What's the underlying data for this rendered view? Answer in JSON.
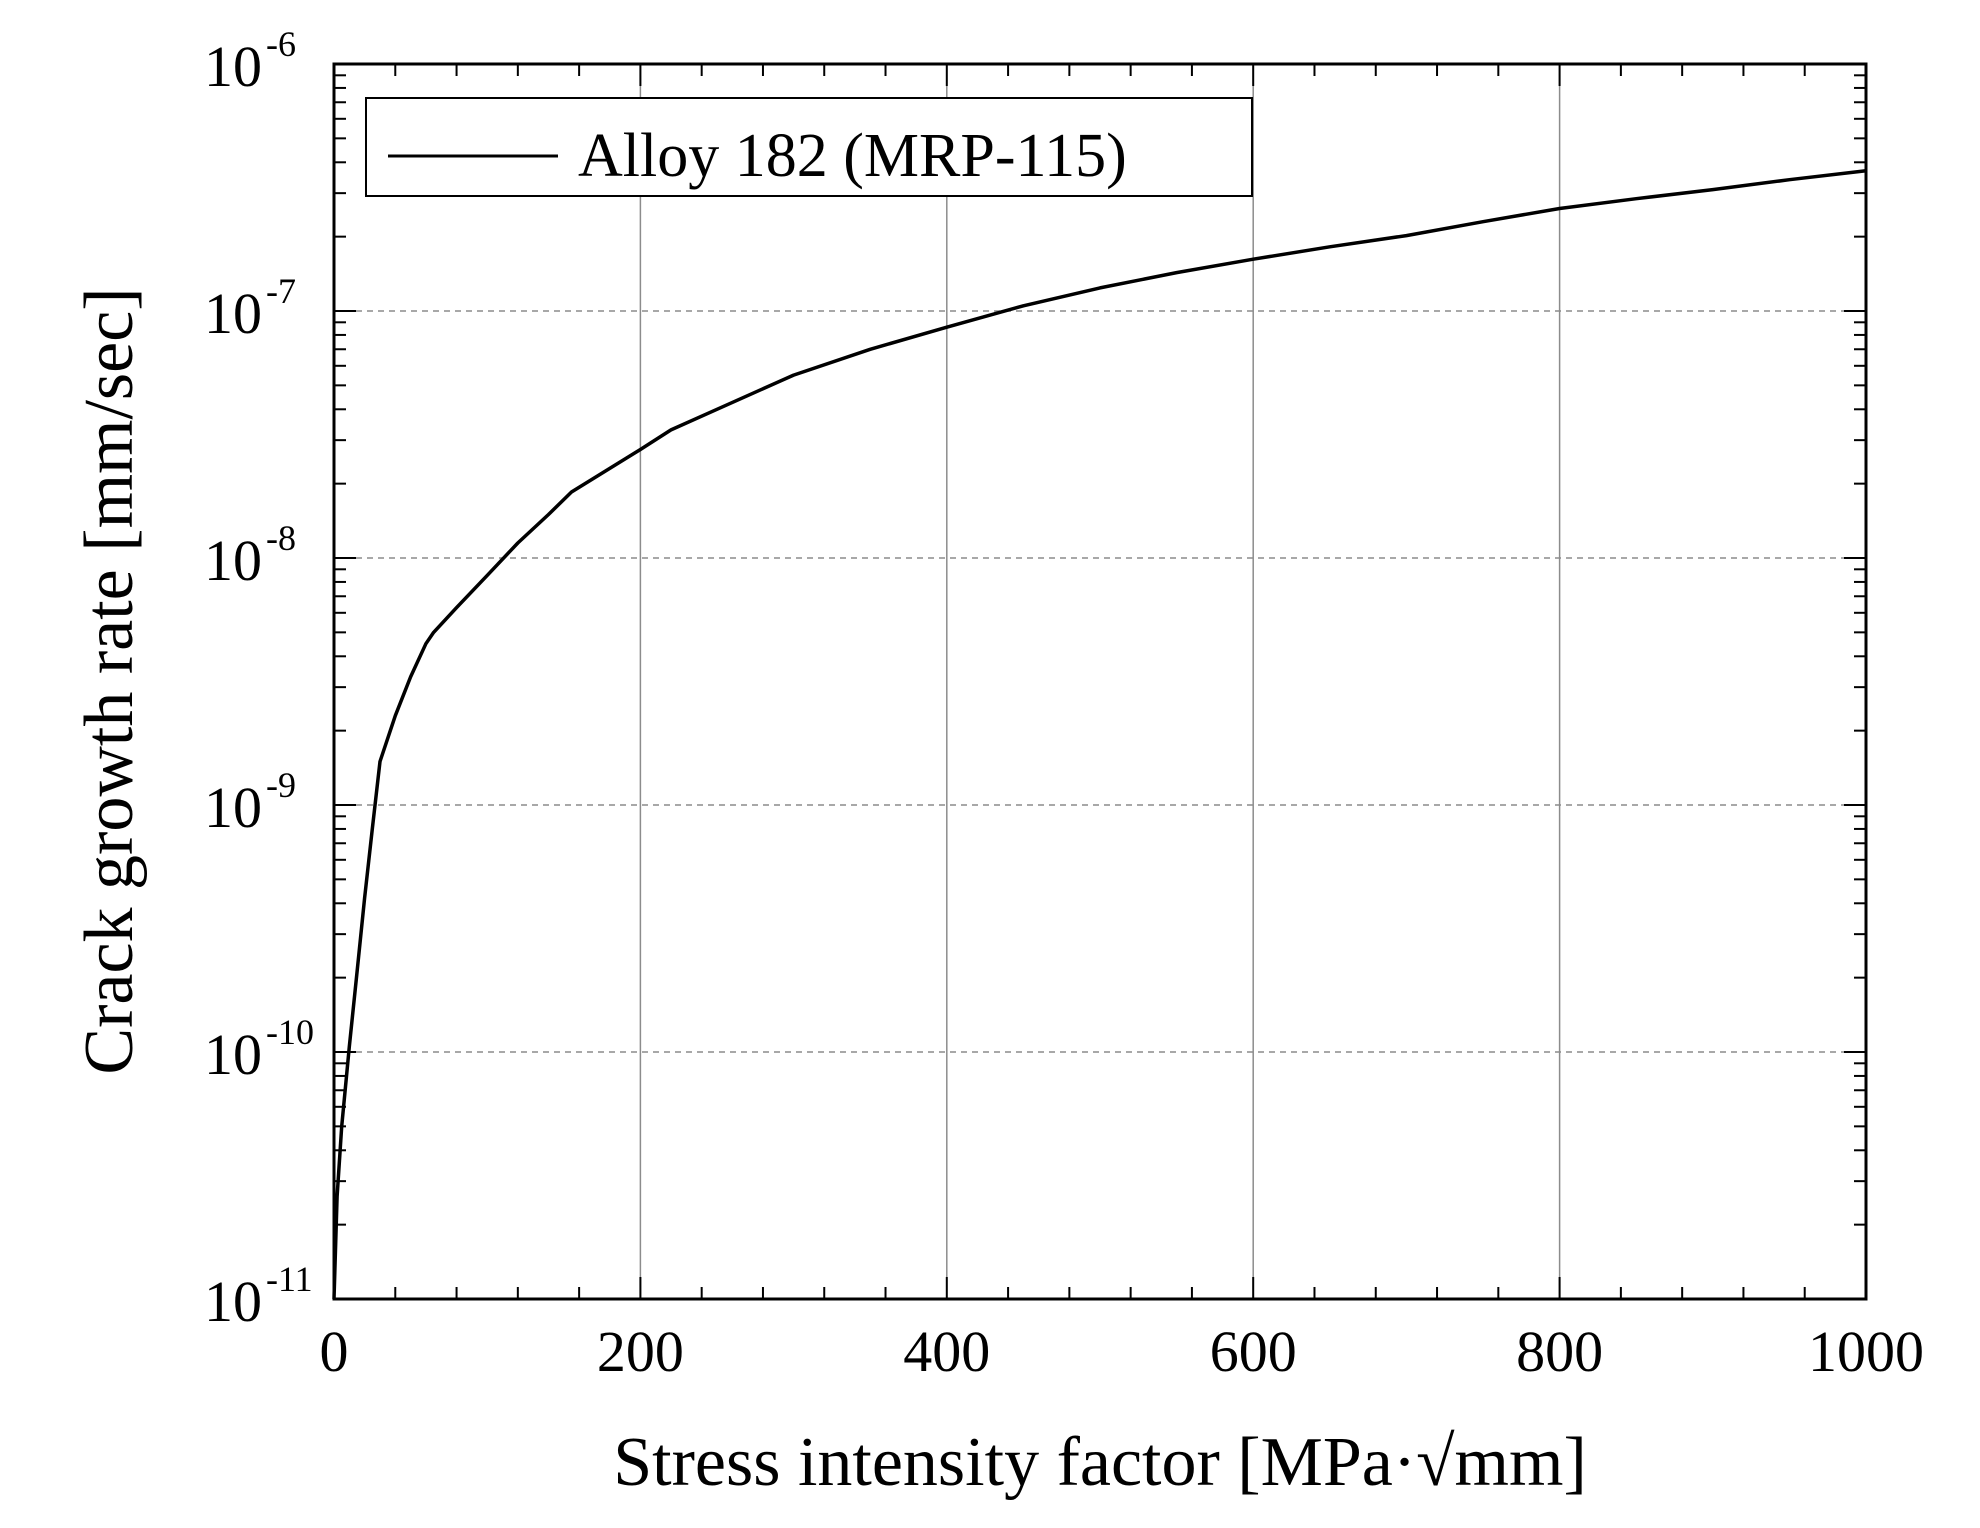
{
  "chart_data": {
    "type": "line",
    "title": "",
    "xlabel": "Stress intensity factor [MPa·√mm]",
    "ylabel": "Crack growth rate [mm/sec]",
    "xscale": "linear",
    "yscale": "log",
    "xlim": [
      0,
      1000
    ],
    "ylim": [
      1e-11,
      1e-06
    ],
    "x_ticks": [
      0,
      200,
      400,
      600,
      800,
      1000
    ],
    "x_tick_labels": [
      "0",
      "200",
      "400",
      "600",
      "800",
      "1000"
    ],
    "y_ticks": [
      {
        "value": 1e-11,
        "base": "10",
        "exponent": "-11"
      },
      {
        "value": 1e-10,
        "base": "10",
        "exponent": "-10"
      },
      {
        "value": 1e-09,
        "base": "10",
        "exponent": "-9"
      },
      {
        "value": 1e-08,
        "base": "10",
        "exponent": "-8"
      },
      {
        "value": 1e-07,
        "base": "10",
        "exponent": "-7"
      },
      {
        "value": 1e-06,
        "base": "10",
        "exponent": "-6"
      }
    ],
    "grid": {
      "x": "solid",
      "y": "dashed"
    },
    "legend": {
      "position": "top-left",
      "entries": [
        "Alloy 182 (MRP-115)"
      ]
    },
    "series": [
      {
        "name": "Alloy 182 (MRP-115)",
        "color": "#000000",
        "x": [
          0,
          2,
          5,
          10,
          15,
          20,
          25,
          30,
          40,
          50,
          60,
          65,
          80,
          100,
          120,
          140,
          155,
          200,
          220,
          250,
          300,
          350,
          400,
          450,
          500,
          550,
          600,
          650,
          700,
          750,
          800,
          850,
          900,
          950,
          1000
        ],
        "y": [
          1e-11,
          2.6e-11,
          5e-11,
          1.05e-10,
          2.1e-10,
          4.2e-10,
          8e-10,
          1.5e-09,
          2.3e-09,
          3.3e-09,
          4.5e-09,
          5e-09,
          6.3e-09,
          8.5e-09,
          1.15e-08,
          1.5e-08,
          1.85e-08,
          2.75e-08,
          3.3e-08,
          4e-08,
          5.5e-08,
          7e-08,
          8.6e-08,
          1.05e-07,
          1.24e-07,
          1.43e-07,
          1.62e-07,
          1.82e-07,
          2.02e-07,
          2.3e-07,
          2.6e-07,
          2.85e-07,
          3.1e-07,
          3.4e-07,
          3.7e-07
        ]
      }
    ]
  }
}
